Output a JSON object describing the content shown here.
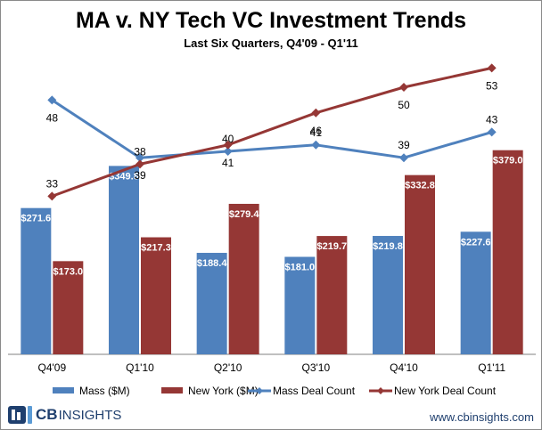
{
  "title": "MA v. NY Tech VC Investment Trends",
  "subtitle": "Last Six Quarters, Q4'09 - Q1'11",
  "chart_data": {
    "type": "bar+line",
    "categories": [
      "Q4'09",
      "Q1'10",
      "Q2'10",
      "Q3'10",
      "Q4'10",
      "Q1'11"
    ],
    "bar_series": [
      {
        "name": "Mass ($M)",
        "color": "#4f81bd",
        "values": [
          271.6,
          349.8,
          188.4,
          181.0,
          219.8,
          227.6
        ],
        "labels": [
          "$271.6",
          "$349.8",
          "$188.4",
          "$181.0",
          "$219.8",
          "$227.6"
        ]
      },
      {
        "name": "New York ($M)",
        "color": "#953735",
        "values": [
          173.0,
          217.3,
          279.4,
          219.7,
          332.8,
          379.0
        ],
        "labels": [
          "$173.0",
          "$217.3",
          "$279.4",
          "$219.7",
          "$332.8",
          "$379.0"
        ]
      }
    ],
    "line_series": [
      {
        "name": "Mass Deal Count",
        "color": "#4f81bd",
        "values": [
          48,
          39,
          40,
          41,
          39,
          43
        ]
      },
      {
        "name": "New York Deal Count",
        "color": "#953735",
        "values": [
          33,
          38,
          41,
          46,
          50,
          53
        ]
      }
    ],
    "bar_axis_range": [
      0,
      400
    ],
    "line_axis_range": [
      20,
      60
    ],
    "legend": [
      "Mass ($M)",
      "New York ($M)",
      "Mass Deal Count",
      "New York Deal Count"
    ],
    "legend_position": "bottom"
  },
  "footer": {
    "logo_cb": "CB",
    "logo_insights": "INSIGHTS",
    "website": "www.cbinsights.com"
  }
}
